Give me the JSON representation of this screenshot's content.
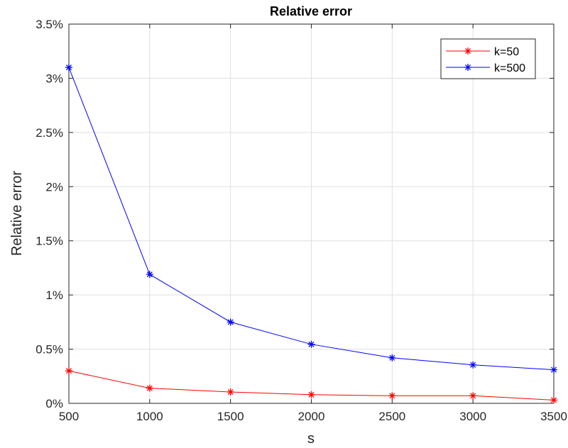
{
  "chart_data": {
    "type": "line",
    "title": "Relative error",
    "xlabel": "s",
    "ylabel": "Relative error",
    "x": [
      500,
      1000,
      1500,
      2000,
      2500,
      3000,
      3500
    ],
    "xlim": [
      500,
      3500
    ],
    "ylim": [
      0,
      3.5
    ],
    "xticks": [
      "500",
      "1000",
      "1500",
      "2000",
      "2500",
      "3000",
      "3500"
    ],
    "yticks": [
      "0%",
      "0.5%",
      "1%",
      "1.5%",
      "2%",
      "2.5%",
      "3%",
      "3.5%"
    ],
    "ytick_values": [
      0,
      0.5,
      1,
      1.5,
      2,
      2.5,
      3,
      3.5
    ],
    "y_unit": "%",
    "grid": true,
    "legend_position": "top-right",
    "marker": "asterisk",
    "series": [
      {
        "name": "k=50",
        "color": "#ff0000",
        "values": [
          0.3,
          0.14,
          0.105,
          0.08,
          0.07,
          0.07,
          0.03
        ]
      },
      {
        "name": "k=500",
        "color": "#0000ff",
        "values": [
          3.1,
          1.19,
          0.75,
          0.545,
          0.42,
          0.355,
          0.31
        ]
      }
    ]
  }
}
